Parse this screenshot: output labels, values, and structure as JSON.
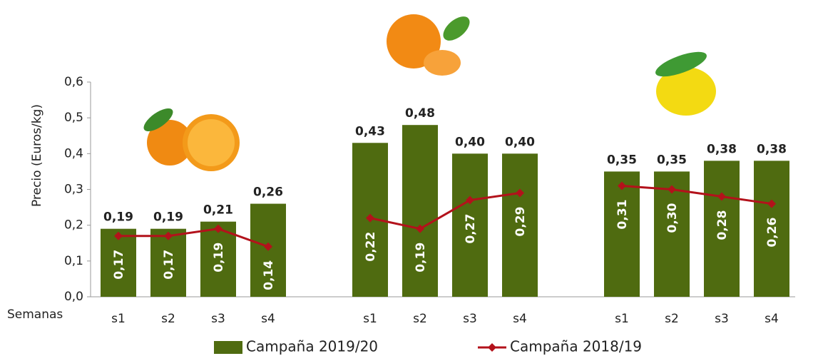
{
  "chart_data": {
    "type": "bar_line",
    "y_label": "Precio (Euros/kg)",
    "x_label": "Semanas",
    "categories": [
      "s1",
      "s2",
      "s3",
      "s4",
      "s1",
      "s2",
      "s3",
      "s4",
      "s1",
      "s2",
      "s3",
      "s4"
    ],
    "series": [
      {
        "name": "Campaña 2019/20",
        "color": "#4f6b10",
        "kind": "bar",
        "values": [
          0.19,
          0.19,
          0.21,
          0.26,
          0.43,
          0.48,
          0.4,
          0.4,
          0.35,
          0.35,
          0.38,
          0.38
        ],
        "value_labels": [
          "0,19",
          "0,19",
          "0,21",
          "0,26",
          "0,43",
          "0,48",
          "0,40",
          "0,40",
          "0,35",
          "0,35",
          "0,38",
          "0,38"
        ]
      },
      {
        "name": "Campaña 2018/19",
        "color": "#b3121b",
        "kind": "line",
        "values": [
          0.17,
          0.17,
          0.19,
          0.14,
          0.22,
          0.19,
          0.27,
          0.29,
          0.31,
          0.3,
          0.28,
          0.26
        ],
        "value_labels": [
          "0,17",
          "0,17",
          "0,19",
          "0,14",
          "0,22",
          "0,19",
          "0,27",
          "0,29",
          "0,31",
          "0,30",
          "0,28",
          "0,26"
        ]
      }
    ],
    "ylim": [
      0,
      0.6
    ],
    "yticks": [
      {
        "value": 0,
        "label": "0,0"
      },
      {
        "value": 0.1,
        "label": "0,1"
      },
      {
        "value": 0.2,
        "label": "0,2"
      },
      {
        "value": 0.3,
        "label": "0,3"
      },
      {
        "value": 0.4,
        "label": "0,4"
      },
      {
        "value": 0.5,
        "label": "0,5"
      },
      {
        "value": 0.6,
        "label": "0,6"
      }
    ],
    "legend": "bottom"
  }
}
